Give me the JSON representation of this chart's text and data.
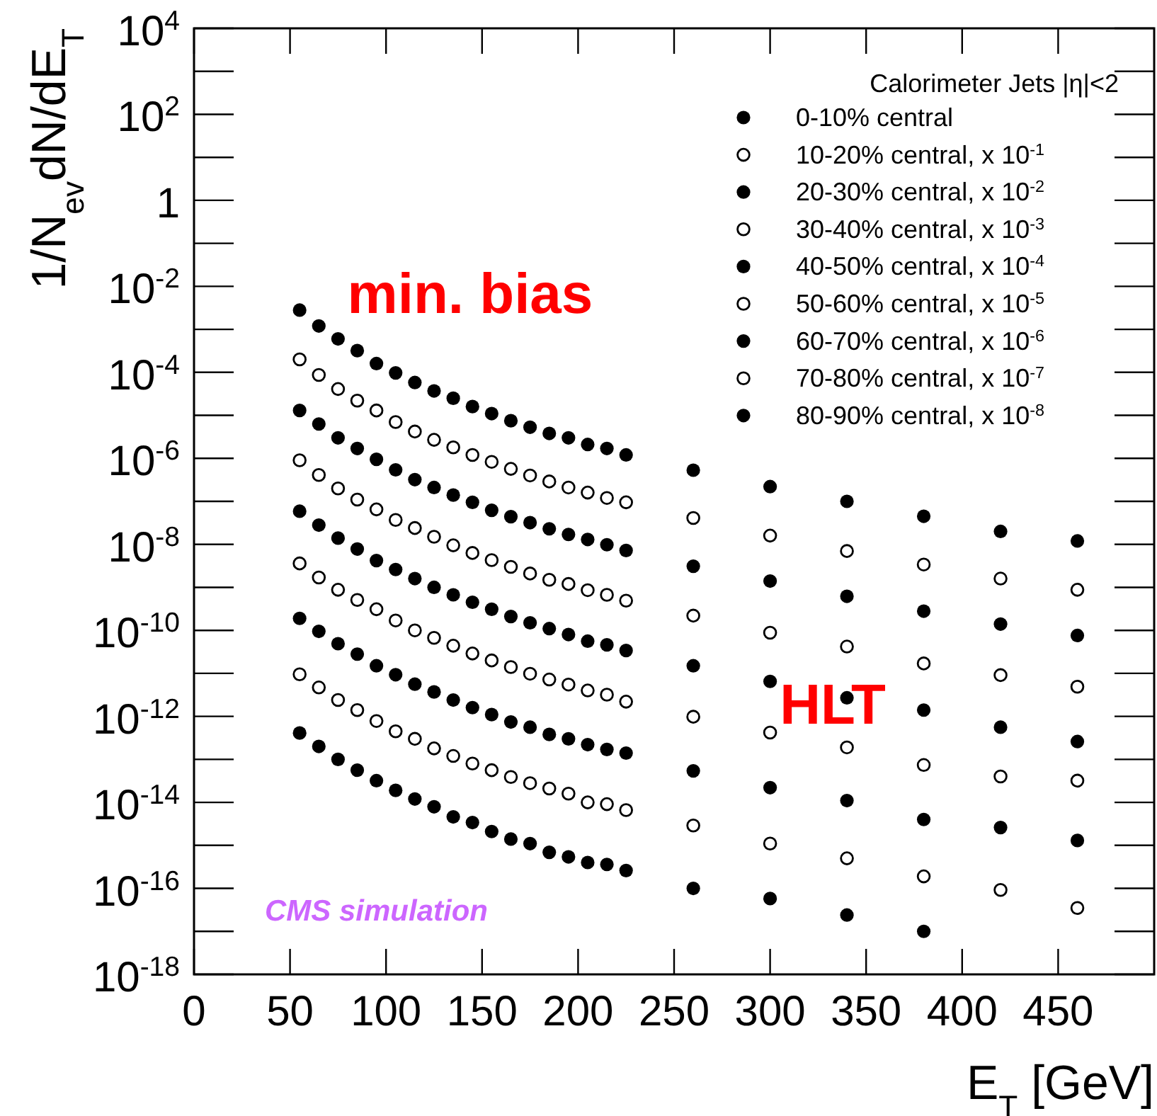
{
  "chart_data": {
    "type": "scatter",
    "xlabel": "E$_{T}$ [GeV]",
    "ylabel": "1/N$_{ev}$dN/dE$_{T}$",
    "legend_title": "Calorimeter Jets |η|<2",
    "legend": "top right",
    "marker": "circle",
    "log": "y",
    "xlim": [
      0,
      500
    ],
    "xticks": [
      0,
      50,
      100,
      150,
      200,
      250,
      300,
      350,
      400,
      450
    ],
    "ylim": [
      1e-18,
      10000.0
    ],
    "yticks": [
      {
        "value": 1e-18,
        "label": "10$^{-18}$"
      },
      {
        "value": 1e-16,
        "label": "10$^{-16}$"
      },
      {
        "value": 1e-14,
        "label": "10$^{-14}$"
      },
      {
        "value": 1e-12,
        "label": "10$^{-12}$"
      },
      {
        "value": 1e-10,
        "label": "10$^{-10}$"
      },
      {
        "value": 1e-08,
        "label": "10$^{-8}$"
      },
      {
        "value": 1e-06,
        "label": "10$^{-6}$"
      },
      {
        "value": 0.0001,
        "label": "10$^{-4}$"
      },
      {
        "value": 0.01,
        "label": "10$^{-2}$"
      },
      1,
      {
        "value": 100,
        "label": "10$^{2}$"
      },
      {
        "value": 10000,
        "label": "10$^{4}$"
      }
    ],
    "x": [
      55,
      65,
      75,
      85,
      95,
      105,
      115,
      125,
      135,
      145,
      155,
      165,
      175,
      185,
      195,
      205,
      215,
      225,
      260,
      300,
      340,
      380,
      420,
      460
    ],
    "annotations": [
      "min. bias",
      "HLT",
      "CMS simulation"
    ],
    "series": [
      {
        "name": "0-10% central",
        "color": "#000000",
        "values": [
          0.0028,
          0.0012,
          0.0006,
          0.00032,
          0.00016,
          9.7e-05,
          5.8e-05,
          3.7e-05,
          2.5e-05,
          1.6e-05,
          1.1e-05,
          7.5e-06,
          5.3e-06,
          3.8e-06,
          3e-06,
          2.1e-06,
          1.7e-06,
          1.2e-06,
          5.3e-07,
          2.2e-07,
          1e-07,
          4.5e-08,
          2e-08,
          1.2e-08
        ]
      },
      {
        "name": "10-20% central, x 10$^{-1}$",
        "color": "#000000",
        "values": [
          0.0002,
          8.7e-05,
          4.1e-05,
          2.2e-05,
          1.3e-05,
          7e-06,
          4.2e-06,
          2.7e-06,
          1.8e-06,
          1.2e-06,
          8.3e-07,
          5.7e-07,
          4e-07,
          2.9e-07,
          2.1e-07,
          1.6e-07,
          1.2e-07,
          9.5e-08,
          4.1e-08,
          1.6e-08,
          7e-09,
          3.4e-09,
          1.6e-09,
          8.8e-10
        ]
      },
      {
        "name": "20-30% central, x 10$^{-2}$",
        "color": "#000000",
        "values": [
          1.3e-05,
          6.3e-06,
          3e-06,
          1.7e-06,
          9.5e-07,
          5.4e-07,
          3.2e-07,
          2.1e-07,
          1.4e-07,
          9.5e-08,
          6.2e-08,
          4.4e-08,
          3.2e-08,
          2.3e-08,
          1.7e-08,
          1.3e-08,
          9.8e-09,
          7.2e-09,
          3.1e-09,
          1.4e-09,
          6.2e-10,
          2.8e-10,
          1.4e-10,
          7.6e-11
        ]
      },
      {
        "name": "30-40% central, x 10$^{-3}$",
        "color": "#000000",
        "values": [
          9e-07,
          4.1e-07,
          2e-07,
          1.1e-07,
          6.5e-08,
          3.7e-08,
          2.4e-08,
          1.5e-08,
          9.5e-09,
          6.3e-09,
          4.3e-09,
          3e-09,
          2.1e-09,
          1.5e-09,
          1.2e-09,
          8.6e-10,
          6.7e-10,
          4.9e-10,
          2.2e-10,
          8.8e-11,
          4.2e-11,
          1.7e-11,
          9.1e-12,
          4.9e-12
        ]
      },
      {
        "name": "40-50% central, x 10$^{-4}$",
        "color": "#000000",
        "values": [
          5.9e-08,
          2.8e-08,
          1.4e-08,
          7.8e-09,
          4.2e-09,
          2.6e-09,
          1.6e-09,
          1e-09,
          6.7e-10,
          4.5e-10,
          3.1e-10,
          2.1e-10,
          1.5e-10,
          1.1e-10,
          8e-11,
          5.6e-11,
          4.6e-11,
          3.4e-11,
          1.5e-11,
          6.5e-12,
          2.7e-12,
          1.4e-12,
          5.6e-13,
          2.6e-13
        ]
      },
      {
        "name": "50-60% central, x 10$^{-5}$",
        "color": "#000000",
        "values": [
          3.6e-09,
          1.7e-09,
          8.8e-10,
          5.1e-10,
          3.1e-10,
          1.7e-10,
          1e-10,
          6.7e-11,
          4.4e-11,
          2.9e-11,
          2e-11,
          1.4e-11,
          9.8e-12,
          7.2e-12,
          5.5e-12,
          4e-12,
          3.2e-12,
          2.2e-12,
          9.8e-13,
          4.2e-13,
          1.9e-13,
          7.4e-14,
          4e-14,
          3.2e-14
        ]
      },
      {
        "name": "60-70% central, x 10$^{-6}$",
        "color": "#000000",
        "values": [
          1.9e-10,
          9.5e-11,
          4.9e-11,
          2.8e-11,
          1.5e-11,
          9.3e-12,
          5.6e-12,
          3.7e-12,
          2.4e-12,
          1.6e-12,
          1.1e-12,
          7.4e-13,
          5.6e-13,
          3.8e-13,
          3e-13,
          2.2e-13,
          1.7e-13,
          1.4e-13,
          5.4e-14,
          2.2e-14,
          1.1e-14,
          4e-15,
          2.6e-15,
          1.3e-15
        ]
      },
      {
        "name": "70-80% central, x 10$^{-7}$",
        "color": "#000000",
        "values": [
          9.5e-12,
          4.7e-12,
          2.4e-12,
          1.4e-12,
          7.8e-13,
          4.5e-13,
          3e-13,
          1.8e-13,
          1.2e-13,
          8e-14,
          5.6e-14,
          3.9e-14,
          2.8e-14,
          2.1e-14,
          1.6e-14,
          1e-14,
          9.1e-15,
          6.6e-15,
          2.9e-15,
          1.1e-15,
          5e-16,
          1.9e-16,
          9.2e-17,
          3.5e-17
        ]
      },
      {
        "name": "80-90% central, x 10$^{-8}$",
        "color": "#000000",
        "values": [
          4.1e-13,
          2e-13,
          1e-13,
          5.6e-14,
          3.2e-14,
          1.9e-14,
          1.2e-14,
          7.9e-15,
          4.6e-15,
          3.4e-15,
          2.1e-15,
          1.4e-15,
          1.1e-15,
          6.9e-16,
          5.4e-16,
          4e-16,
          3.6e-16,
          2.6e-16,
          1e-16,
          5.8e-17,
          2.4e-17,
          1e-17,
          null,
          null
        ]
      }
    ]
  }
}
